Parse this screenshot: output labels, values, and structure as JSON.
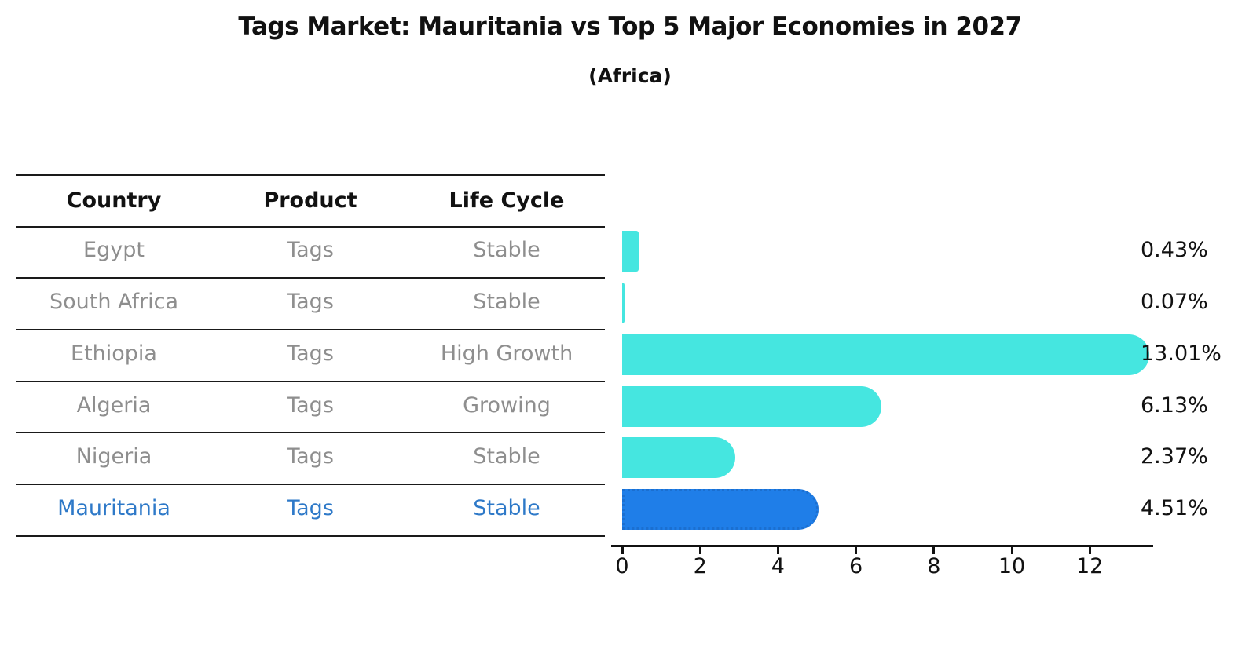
{
  "title": "Tags Market: Mauritania vs Top 5 Major Economies in 2027",
  "subtitle": "(Africa)",
  "table": {
    "headers": [
      "Country",
      "Product",
      "Life Cycle"
    ],
    "rows": [
      {
        "country": "Egypt",
        "product": "Tags",
        "life_cycle": "Stable"
      },
      {
        "country": "South Africa",
        "product": "Tags",
        "life_cycle": "Stable"
      },
      {
        "country": "Ethiopia",
        "product": "Tags",
        "life_cycle": "High Growth"
      },
      {
        "country": "Algeria",
        "product": "Tags",
        "life_cycle": "Growing"
      },
      {
        "country": "Nigeria",
        "product": "Tags",
        "life_cycle": "Stable"
      },
      {
        "country": "Mauritania",
        "product": "Tags",
        "life_cycle": "Stable"
      }
    ]
  },
  "chart_data": {
    "type": "bar",
    "orientation": "horizontal",
    "categories": [
      "Egypt",
      "South Africa",
      "Ethiopia",
      "Algeria",
      "Nigeria",
      "Mauritania"
    ],
    "values": [
      0.43,
      0.07,
      13.01,
      6.13,
      2.37,
      4.51
    ],
    "value_labels": [
      "0.43%",
      "0.07%",
      "13.01%",
      "6.13%",
      "2.37%",
      "4.51%"
    ],
    "xticks": [
      0,
      2,
      4,
      6,
      8,
      10,
      12
    ],
    "xlim": [
      0,
      13.6
    ],
    "grid": false,
    "legend": "none",
    "highlight_category": "Mauritania",
    "highlight_index": 5
  },
  "colors": {
    "bar_default": "#45E6E0",
    "bar_highlight": "#1F7EE8",
    "bar_highlight_border": "#1B6FD0",
    "highlight_text": "#2E79C8",
    "row_text": "#8E8E8E",
    "header_text": "#111111",
    "axis": "#111111"
  }
}
